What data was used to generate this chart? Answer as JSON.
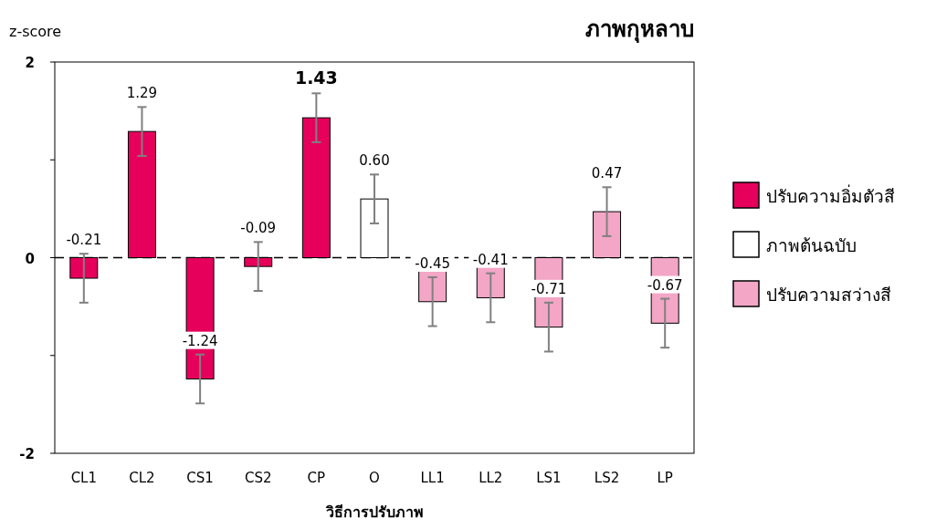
{
  "chart_data": {
    "type": "bar",
    "title": "ภาพกุหลาบ",
    "ylabel": "z-score",
    "xlabel": "วิธีการปรับภาพ",
    "categories": [
      "CL1",
      "CL2",
      "CS1",
      "CS2",
      "CP",
      "O",
      "LL1",
      "LL2",
      "LS1",
      "LS2",
      "LP"
    ],
    "ylim": [
      -2,
      2
    ],
    "yticks": [
      -2,
      {
        "value": -1,
        "label": null
      },
      0,
      {
        "value": 1,
        "label": null
      },
      2
    ],
    "series": [
      {
        "name": "ปรับความอิ่มตัวสี",
        "color": "#e6005c",
        "values": [
          -0.21,
          1.29,
          -1.24,
          -0.09,
          1.43,
          null,
          null,
          null,
          null,
          null,
          null
        ],
        "errors": [
          0.25,
          0.25,
          0.25,
          0.25,
          0.25,
          null,
          null,
          null,
          null,
          null,
          null
        ],
        "value_labels": [
          "-0.21",
          "1.29",
          "-1.24",
          "-0.09",
          "1.43",
          null,
          null,
          null,
          null,
          null,
          null
        ]
      },
      {
        "name": "ภาพต้นฉบับ",
        "color": "#ffffff",
        "values": [
          null,
          null,
          null,
          null,
          null,
          0.6,
          null,
          null,
          null,
          null,
          null
        ],
        "errors": [
          null,
          null,
          null,
          null,
          null,
          0.25,
          null,
          null,
          null,
          null,
          null
        ],
        "value_labels": [
          null,
          null,
          null,
          null,
          null,
          "0.60",
          null,
          null,
          null,
          null,
          null
        ]
      },
      {
        "name": "ปรับความสว่างสี",
        "color": "#f3a6c6",
        "values": [
          null,
          null,
          null,
          null,
          null,
          null,
          -0.45,
          -0.41,
          -0.71,
          0.47,
          -0.67
        ],
        "errors": [
          null,
          null,
          null,
          null,
          null,
          null,
          0.25,
          0.25,
          0.25,
          0.25,
          0.25
        ],
        "value_labels": [
          null,
          null,
          null,
          null,
          null,
          null,
          "-0.45",
          "-0.41",
          "-0.71",
          "0.47",
          "-0.67"
        ]
      }
    ],
    "ref_lines": [
      {
        "axis": "y",
        "value": 0,
        "line_style": "dashed",
        "color": "#000000"
      }
    ],
    "legend": "right",
    "grid": false
  }
}
